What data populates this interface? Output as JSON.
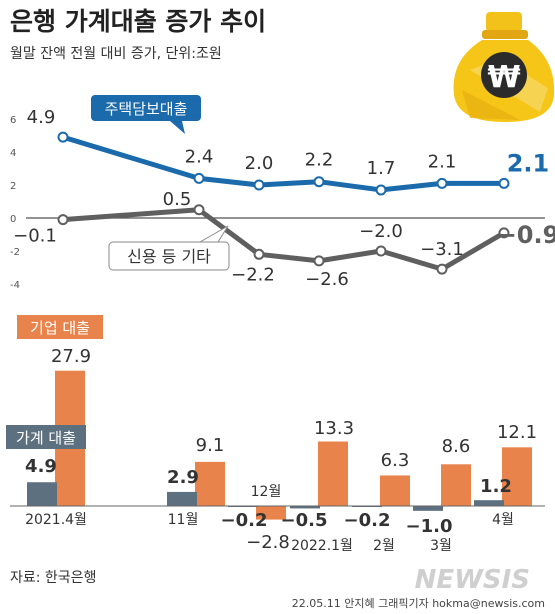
{
  "title": "은행 가계대출 증가 추이",
  "subtitle": "월말 잔액 전월 대비 증가, 단위:조원",
  "source": "자료: 한국은행",
  "credit": "22.05.11 안지혜 그래픽기자 hokma@newsis.com",
  "logo_text": "NEWSIS",
  "icon": "money-bag-won-icon",
  "colors": {
    "mortgage": "#1a6aac",
    "credit": "#5f5f5f",
    "corporate": "#e8834c",
    "household": "#5d7080",
    "title": "#222222"
  },
  "chart_data": [
    {
      "type": "line",
      "x": [
        "2021.4월",
        "11월",
        "12월",
        "2022.1월",
        "2월",
        "3월",
        "4월"
      ],
      "ylim": [
        -4,
        6
      ],
      "yticks": [
        -4,
        -2,
        0,
        2,
        4,
        6
      ],
      "series": [
        {
          "name": "주택담보대출",
          "values": [
            4.9,
            2.4,
            2.0,
            2.2,
            1.7,
            2.1,
            2.1
          ],
          "labels": [
            "4.9",
            "2.4",
            "2.0",
            "2.2",
            "1.7",
            "2.1",
            "2.1"
          ]
        },
        {
          "name": "신용 등 기타",
          "values": [
            -0.1,
            0.5,
            -2.2,
            -2.6,
            -2.0,
            -3.1,
            -0.9
          ],
          "labels": [
            "−0.1",
            "0.5",
            "−2.2",
            "−2.6",
            "−2.0",
            "−3.1",
            "−0.9"
          ]
        }
      ]
    },
    {
      "type": "bar",
      "categories": [
        "2021.4월",
        "11월",
        "12월",
        "2022.1월",
        "2월",
        "3월",
        "4월"
      ],
      "series": [
        {
          "name": "가계 대출",
          "values": [
            4.9,
            2.9,
            -0.2,
            -0.5,
            -0.2,
            -1.0,
            1.2
          ],
          "labels": [
            "4.9",
            "2.9",
            "−0.2",
            "−0.5",
            "−0.2",
            "−1.0",
            "1.2"
          ]
        },
        {
          "name": "기업 대출",
          "values": [
            27.9,
            9.1,
            -2.8,
            13.3,
            6.3,
            8.6,
            12.1
          ],
          "labels": [
            "27.9",
            "9.1",
            "−2.8",
            "13.3",
            "6.3",
            "8.6",
            "12.1"
          ]
        }
      ]
    }
  ]
}
